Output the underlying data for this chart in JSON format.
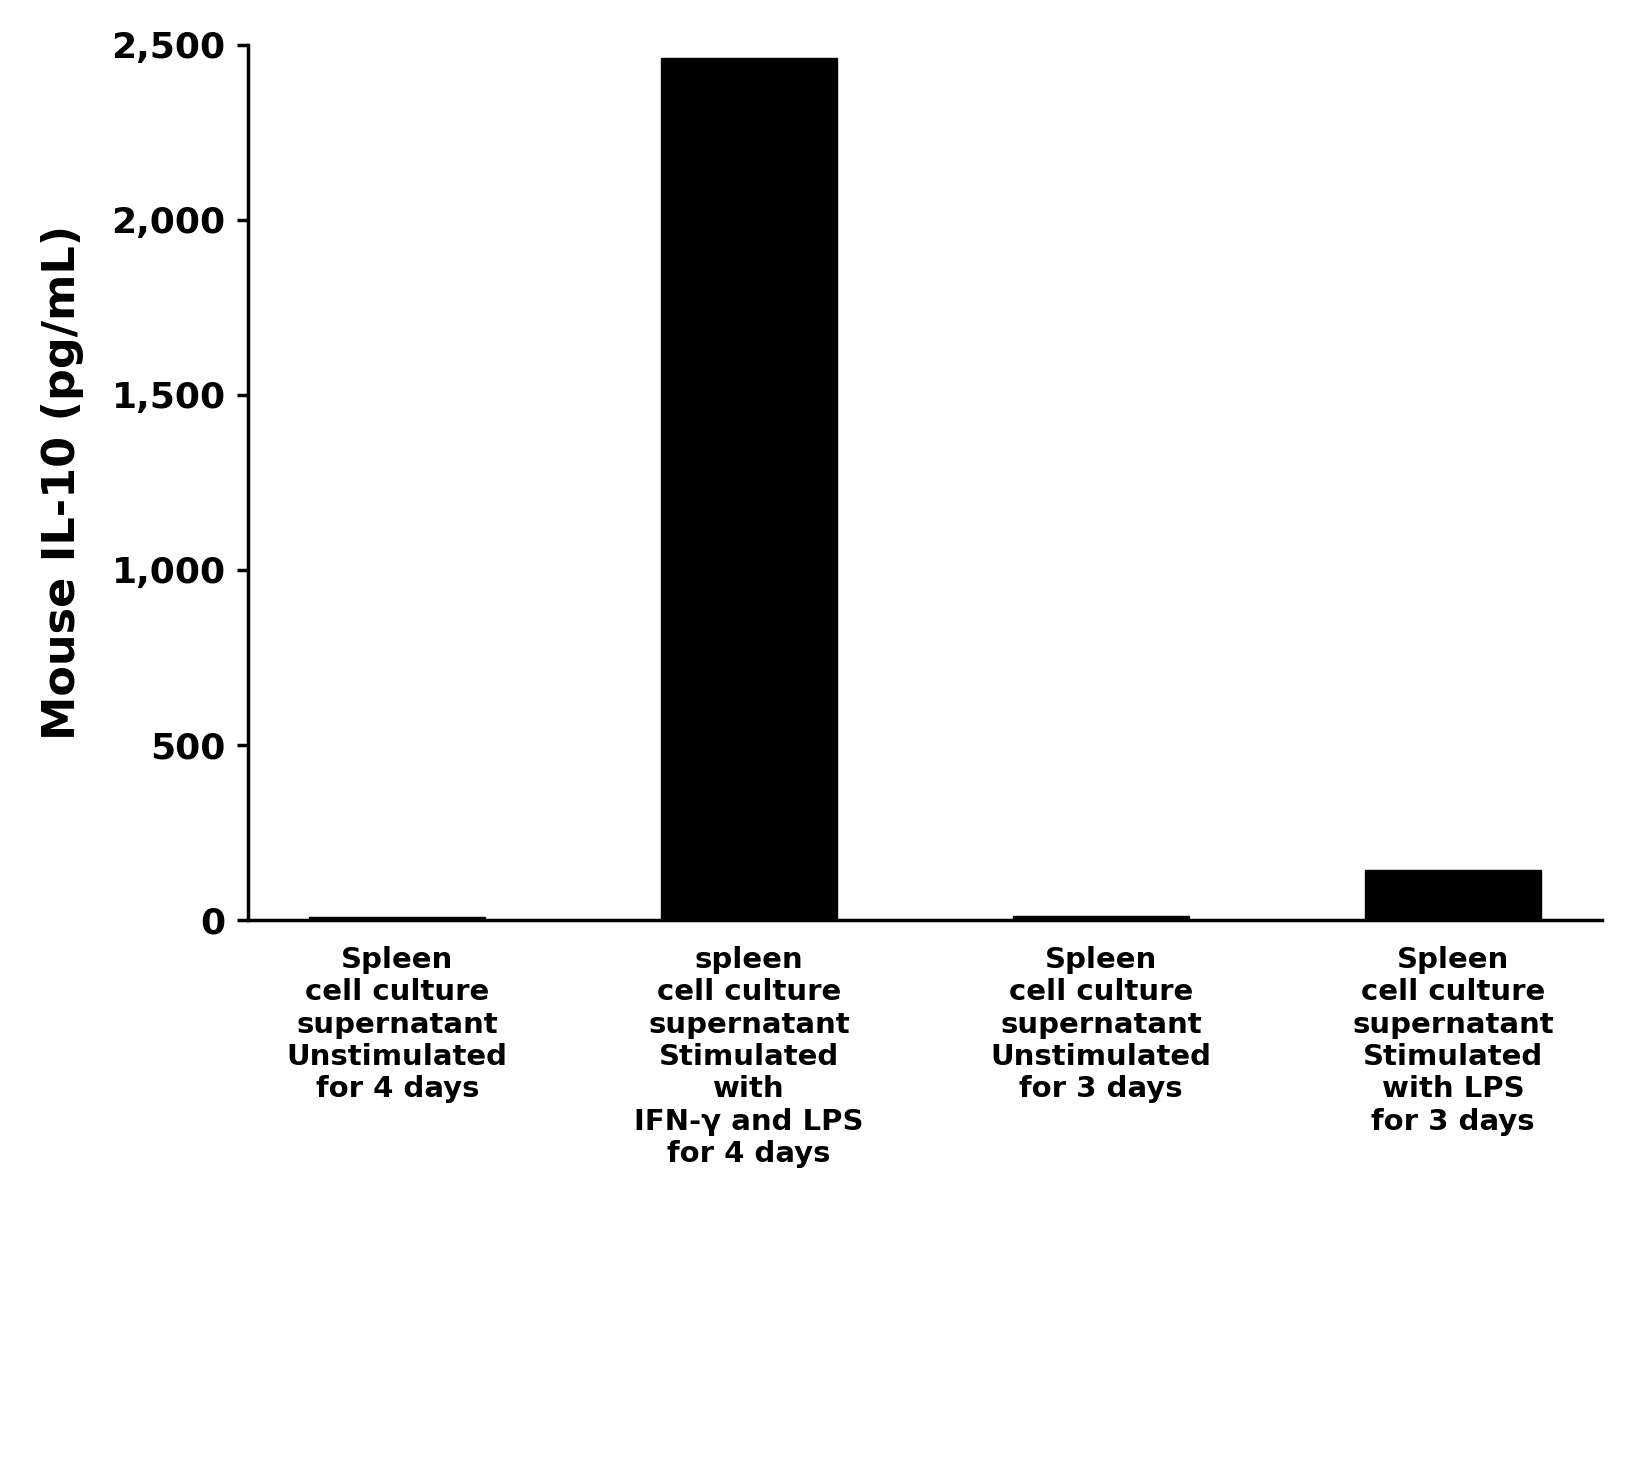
{
  "categories": [
    "Spleen\ncell culture\nsupernatant\nUnstimulated\nfor 4 days",
    "spleen\ncell culture\nsupernatant\nStimulated\nwith\nIFN-γ and LPS\nfor 4 days",
    "Spleen\ncell culture\nsupernatant\nUnstimulated\nfor 3 days",
    "Spleen\ncell culture\nsupernatant\nStimulated\nwith LPS\nfor 3 days"
  ],
  "values": [
    7.59,
    2461.0,
    11.3,
    143.99
  ],
  "bar_color": "#000000",
  "ylabel": "Mouse IL-10 (pg/mL)",
  "ylim": [
    0,
    2500
  ],
  "yticks": [
    0,
    500,
    1000,
    1500,
    2000,
    2500
  ],
  "background_color": "#ffffff",
  "bar_width": 0.5,
  "ylabel_fontsize": 32,
  "tick_fontsize": 26,
  "xlabel_fontsize": 21
}
